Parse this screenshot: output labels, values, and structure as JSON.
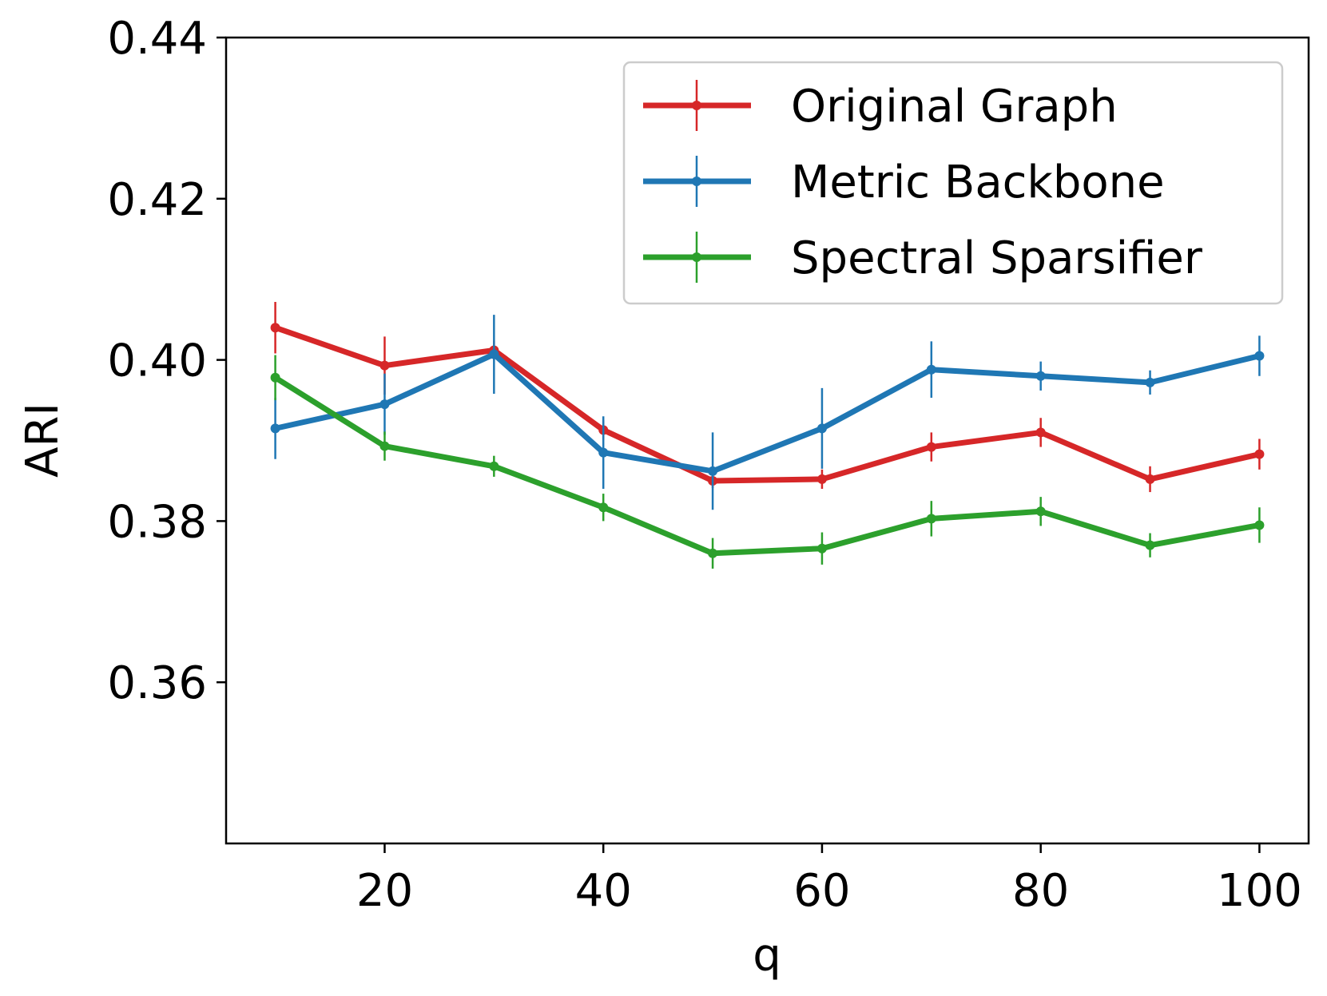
{
  "chart_data": {
    "type": "line",
    "title": "",
    "xlabel": "q",
    "ylabel": "ARI",
    "xlim": [
      5.5,
      104.5
    ],
    "ylim": [
      0.34,
      0.44
    ],
    "xticks": [
      20,
      40,
      60,
      80,
      100
    ],
    "yticks": [
      0.36,
      0.38,
      0.4,
      0.42,
      0.44
    ],
    "ytick_labels": [
      "0.36",
      "0.38",
      "0.40",
      "0.42",
      "0.44"
    ],
    "grid": false,
    "legend_position": "top-right",
    "x": [
      10,
      20,
      30,
      40,
      50,
      60,
      70,
      80,
      90,
      100
    ],
    "series": [
      {
        "name": "Original Graph",
        "color": "#d62728",
        "values": [
          0.404,
          0.3993,
          0.4012,
          0.3913,
          0.385,
          0.3852,
          0.3892,
          0.391,
          0.3852,
          0.3883
        ],
        "errors": [
          0.0032,
          0.0036,
          0.0012,
          0.0012,
          0.0009,
          0.0012,
          0.0018,
          0.0018,
          0.0016,
          0.0019
        ]
      },
      {
        "name": "Metric Backbone",
        "color": "#1f77b4",
        "values": [
          0.3915,
          0.3945,
          0.4007,
          0.3885,
          0.3862,
          0.3915,
          0.3988,
          0.398,
          0.3972,
          0.4005
        ],
        "errors": [
          0.0038,
          0.0038,
          0.0049,
          0.0045,
          0.0048,
          0.005,
          0.0035,
          0.0018,
          0.0015,
          0.0025
        ]
      },
      {
        "name": "Spectral Sparsifier",
        "color": "#2ca02c",
        "values": [
          0.3978,
          0.3893,
          0.3868,
          0.3817,
          0.376,
          0.3766,
          0.3803,
          0.3812,
          0.377,
          0.3795
        ],
        "errors": [
          0.0028,
          0.0018,
          0.0013,
          0.0017,
          0.0019,
          0.002,
          0.0022,
          0.0018,
          0.0015,
          0.0022
        ]
      }
    ]
  }
}
